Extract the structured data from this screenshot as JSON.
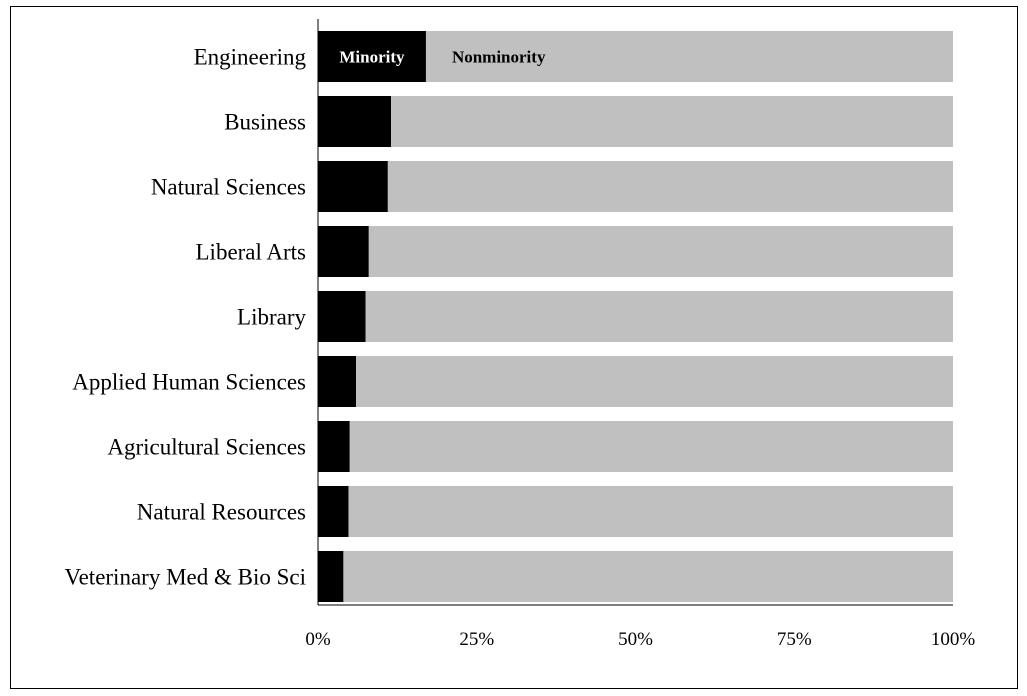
{
  "chart_data": {
    "type": "bar",
    "orientation": "horizontal",
    "stacked": true,
    "categories": [
      "Engineering",
      "Business",
      "Natural Sciences",
      "Liberal Arts",
      "Library",
      "Applied Human Sciences",
      "Agricultural Sciences",
      "Natural Resources",
      "Veterinary Med & Bio Sci"
    ],
    "series": [
      {
        "name": "Minority",
        "color": "#000000",
        "values": [
          17,
          11.5,
          11,
          8,
          7.5,
          6,
          5,
          4.8,
          4
        ]
      },
      {
        "name": "Nonminority",
        "color": "#c0c0c0",
        "values": [
          83,
          88.5,
          89,
          92,
          92.5,
          94,
          95,
          95.2,
          96
        ]
      }
    ],
    "xlim": [
      0,
      100
    ],
    "xticks": [
      "0%",
      "25%",
      "50%",
      "75%",
      "100%"
    ],
    "xtick_values": [
      0,
      25,
      50,
      75,
      100
    ],
    "grid": false,
    "legend": "inline labels on first bar"
  }
}
